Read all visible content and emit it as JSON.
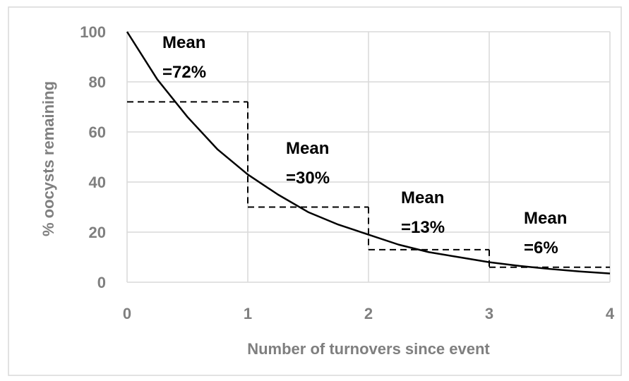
{
  "chart_data": {
    "type": "line",
    "x_label": "Number of turnovers since event",
    "y_label": "% oocysts remaining",
    "xlim": [
      0,
      4
    ],
    "xticks": [
      0,
      1,
      2,
      3,
      4
    ],
    "ylim": [
      0,
      100
    ],
    "yticks": [
      0,
      20,
      40,
      60,
      80,
      100
    ],
    "grid": true,
    "series": [
      {
        "color": "#000000",
        "x": [
          0,
          0.25,
          0.5,
          0.75,
          1,
          1.25,
          1.5,
          1.75,
          2,
          2.25,
          2.5,
          2.75,
          3,
          3.25,
          3.5,
          3.75,
          4
        ],
        "values": [
          100,
          81,
          66,
          53,
          43,
          35,
          28,
          23,
          19,
          15,
          12,
          10,
          8,
          6.5,
          5.3,
          4.3,
          3.5
        ]
      }
    ],
    "steps": [
      {
        "x": [
          0,
          1
        ],
        "value": 72,
        "label": [
          "Mean",
          "=72%"
        ]
      },
      {
        "x": [
          1,
          2
        ],
        "value": 30,
        "label": [
          "Mean",
          "=30%"
        ]
      },
      {
        "x": [
          2,
          3
        ],
        "value": 13,
        "label": [
          "Mean",
          "=13%"
        ]
      },
      {
        "x": [
          3,
          4
        ],
        "value": 6,
        "label": [
          "Mean",
          "=6%"
        ]
      }
    ]
  }
}
